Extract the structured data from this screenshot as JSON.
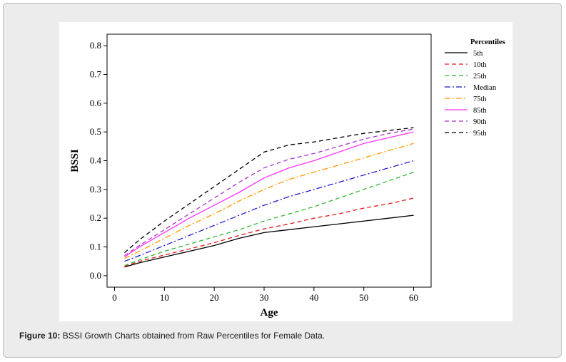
{
  "caption": {
    "label": "Figure 10:",
    "text": " BSSI Growth Charts obtained from Raw Percentiles for Female Data."
  },
  "chart_data": {
    "type": "line",
    "title": "",
    "xlabel": "Age",
    "ylabel": "BSSI",
    "xlim": [
      -1.5,
      63.5
    ],
    "ylim": [
      -0.04,
      0.84
    ],
    "xticks": [
      "0",
      "10",
      "20",
      "30",
      "40",
      "50",
      "60"
    ],
    "yticks": [
      "0.0",
      "0.1",
      "0.2",
      "0.3",
      "0.4",
      "0.5",
      "0.6",
      "0.7",
      "0.8"
    ],
    "legend_title": "Percentiles",
    "legend_position": "right",
    "grid": false,
    "series": [
      {
        "name": "5th",
        "color": "#000000",
        "dash": "solid",
        "x": [
          2,
          5,
          10,
          15,
          20,
          25,
          30,
          35,
          40,
          45,
          50,
          55,
          60
        ],
        "y": [
          0.03,
          0.045,
          0.065,
          0.085,
          0.105,
          0.13,
          0.15,
          0.16,
          0.17,
          0.18,
          0.19,
          0.2,
          0.21
        ]
      },
      {
        "name": "10th",
        "color": "#e41a1c",
        "dash": "dashed",
        "x": [
          2,
          5,
          10,
          15,
          20,
          25,
          30,
          35,
          40,
          45,
          50,
          55,
          60
        ],
        "y": [
          0.032,
          0.05,
          0.072,
          0.093,
          0.115,
          0.14,
          0.163,
          0.18,
          0.2,
          0.215,
          0.235,
          0.25,
          0.27
        ]
      },
      {
        "name": "25th",
        "color": "#33b533",
        "dash": "dashed",
        "x": [
          2,
          5,
          10,
          15,
          20,
          25,
          30,
          35,
          40,
          45,
          50,
          55,
          60
        ],
        "y": [
          0.035,
          0.055,
          0.085,
          0.11,
          0.135,
          0.16,
          0.19,
          0.215,
          0.24,
          0.27,
          0.3,
          0.33,
          0.36
        ]
      },
      {
        "name": "Median",
        "color": "#1a1acc",
        "dash": "dashdot",
        "x": [
          2,
          5,
          10,
          15,
          20,
          25,
          30,
          35,
          40,
          45,
          50,
          55,
          60
        ],
        "y": [
          0.05,
          0.07,
          0.105,
          0.14,
          0.175,
          0.21,
          0.245,
          0.275,
          0.3,
          0.325,
          0.35,
          0.375,
          0.4
        ]
      },
      {
        "name": "75th",
        "color": "#ff9900",
        "dash": "dashdot",
        "x": [
          2,
          5,
          10,
          15,
          20,
          25,
          30,
          35,
          40,
          45,
          50,
          55,
          60
        ],
        "y": [
          0.06,
          0.085,
          0.13,
          0.175,
          0.215,
          0.26,
          0.3,
          0.335,
          0.36,
          0.385,
          0.41,
          0.435,
          0.46
        ]
      },
      {
        "name": "85th",
        "color": "#ff33ff",
        "dash": "solid",
        "x": [
          2,
          5,
          10,
          15,
          20,
          25,
          30,
          35,
          40,
          45,
          50,
          55,
          60
        ],
        "y": [
          0.065,
          0.1,
          0.15,
          0.2,
          0.245,
          0.29,
          0.34,
          0.375,
          0.4,
          0.43,
          0.46,
          0.48,
          0.5
        ]
      },
      {
        "name": "90th",
        "color": "#aa33cc",
        "dash": "dashed",
        "x": [
          2,
          5,
          10,
          15,
          20,
          25,
          30,
          35,
          40,
          45,
          50,
          55,
          60
        ],
        "y": [
          0.07,
          0.105,
          0.16,
          0.215,
          0.27,
          0.325,
          0.375,
          0.405,
          0.425,
          0.45,
          0.475,
          0.495,
          0.51
        ]
      },
      {
        "name": "95th",
        "color": "#000000",
        "dash": "dashed",
        "x": [
          2,
          5,
          10,
          15,
          20,
          25,
          30,
          35,
          40,
          45,
          50,
          55,
          60
        ],
        "y": [
          0.08,
          0.125,
          0.19,
          0.25,
          0.31,
          0.37,
          0.43,
          0.455,
          0.465,
          0.48,
          0.495,
          0.505,
          0.515
        ]
      }
    ]
  }
}
